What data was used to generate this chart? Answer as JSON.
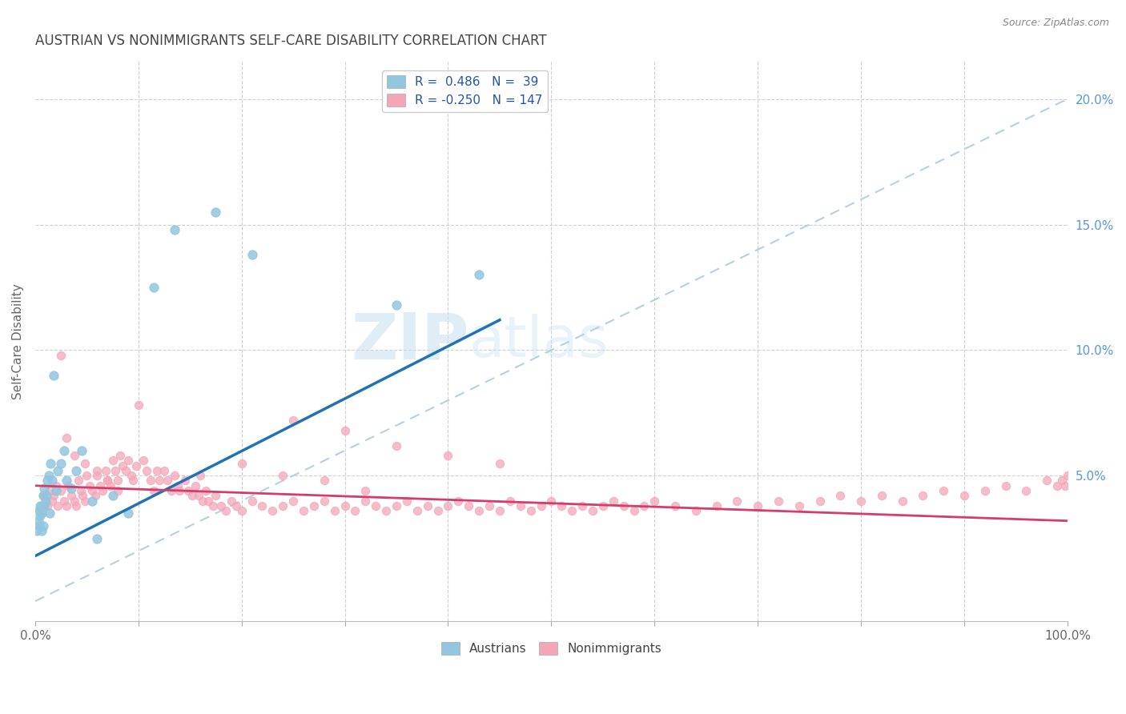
{
  "title": "AUSTRIAN VS NONIMMIGRANTS SELF-CARE DISABILITY CORRELATION CHART",
  "source": "Source: ZipAtlas.com",
  "ylabel": "Self-Care Disability",
  "xlim": [
    0,
    1.0
  ],
  "ylim": [
    -0.008,
    0.215
  ],
  "r_austrians": 0.486,
  "n_austrians": 39,
  "r_nonimmigrants": -0.25,
  "n_nonimmigrants": 147,
  "blue_scatter_color": "#92c5de",
  "pink_scatter_color": "#f4a6b8",
  "blue_line_color": "#2171b5",
  "pink_line_color": "#d63b6e",
  "dashed_line_color": "#a8cee2",
  "blue_line_x": [
    0.0,
    0.45
  ],
  "blue_line_y": [
    0.018,
    0.112
  ],
  "pink_line_x": [
    0.0,
    1.0
  ],
  "pink_line_y": [
    0.046,
    0.032
  ],
  "diag_line_x": [
    0.0,
    1.0
  ],
  "diag_line_y": [
    0.0,
    0.2
  ],
  "austrians_x": [
    0.002,
    0.003,
    0.004,
    0.004,
    0.005,
    0.005,
    0.006,
    0.006,
    0.007,
    0.008,
    0.008,
    0.009,
    0.009,
    0.01,
    0.011,
    0.012,
    0.013,
    0.014,
    0.015,
    0.016,
    0.018,
    0.02,
    0.022,
    0.025,
    0.028,
    0.03,
    0.035,
    0.04,
    0.045,
    0.055,
    0.06,
    0.075,
    0.09,
    0.115,
    0.135,
    0.175,
    0.21,
    0.35,
    0.43
  ],
  "austrians_y": [
    0.028,
    0.032,
    0.03,
    0.036,
    0.034,
    0.038,
    0.028,
    0.035,
    0.038,
    0.03,
    0.042,
    0.038,
    0.045,
    0.04,
    0.042,
    0.048,
    0.05,
    0.035,
    0.055,
    0.048,
    0.09,
    0.044,
    0.052,
    0.055,
    0.06,
    0.048,
    0.045,
    0.052,
    0.06,
    0.04,
    0.025,
    0.042,
    0.035,
    0.125,
    0.148,
    0.155,
    0.138,
    0.118,
    0.13
  ],
  "nonimmigrants_x": [
    0.008,
    0.01,
    0.012,
    0.014,
    0.016,
    0.018,
    0.02,
    0.022,
    0.025,
    0.028,
    0.03,
    0.032,
    0.035,
    0.038,
    0.04,
    0.042,
    0.044,
    0.046,
    0.048,
    0.05,
    0.053,
    0.055,
    0.058,
    0.06,
    0.063,
    0.065,
    0.068,
    0.07,
    0.073,
    0.075,
    0.078,
    0.08,
    0.082,
    0.085,
    0.088,
    0.09,
    0.093,
    0.095,
    0.098,
    0.1,
    0.105,
    0.108,
    0.112,
    0.115,
    0.118,
    0.12,
    0.125,
    0.128,
    0.132,
    0.135,
    0.138,
    0.14,
    0.145,
    0.148,
    0.152,
    0.155,
    0.158,
    0.162,
    0.165,
    0.168,
    0.172,
    0.175,
    0.18,
    0.185,
    0.19,
    0.195,
    0.2,
    0.21,
    0.22,
    0.23,
    0.24,
    0.25,
    0.26,
    0.27,
    0.28,
    0.29,
    0.3,
    0.31,
    0.32,
    0.33,
    0.34,
    0.35,
    0.36,
    0.37,
    0.38,
    0.39,
    0.4,
    0.41,
    0.42,
    0.43,
    0.44,
    0.45,
    0.46,
    0.47,
    0.48,
    0.49,
    0.5,
    0.51,
    0.52,
    0.53,
    0.54,
    0.55,
    0.56,
    0.57,
    0.58,
    0.59,
    0.6,
    0.62,
    0.64,
    0.66,
    0.68,
    0.7,
    0.72,
    0.74,
    0.76,
    0.78,
    0.8,
    0.82,
    0.84,
    0.86,
    0.88,
    0.9,
    0.92,
    0.94,
    0.96,
    0.98,
    0.99,
    0.995,
    0.998,
    1.0,
    0.025,
    0.03,
    0.038,
    0.048,
    0.06,
    0.07,
    0.08,
    0.25,
    0.3,
    0.35,
    0.4,
    0.45,
    0.16,
    0.2,
    0.24,
    0.28,
    0.32
  ],
  "nonimmigrants_y": [
    0.042,
    0.04,
    0.038,
    0.044,
    0.04,
    0.042,
    0.046,
    0.038,
    0.044,
    0.04,
    0.038,
    0.046,
    0.042,
    0.04,
    0.038,
    0.048,
    0.044,
    0.042,
    0.04,
    0.05,
    0.046,
    0.044,
    0.042,
    0.05,
    0.046,
    0.044,
    0.052,
    0.048,
    0.046,
    0.056,
    0.052,
    0.048,
    0.058,
    0.054,
    0.052,
    0.056,
    0.05,
    0.048,
    0.054,
    0.078,
    0.056,
    0.052,
    0.048,
    0.044,
    0.052,
    0.048,
    0.052,
    0.048,
    0.044,
    0.05,
    0.046,
    0.044,
    0.048,
    0.044,
    0.042,
    0.046,
    0.042,
    0.04,
    0.044,
    0.04,
    0.038,
    0.042,
    0.038,
    0.036,
    0.04,
    0.038,
    0.036,
    0.04,
    0.038,
    0.036,
    0.038,
    0.04,
    0.036,
    0.038,
    0.04,
    0.036,
    0.038,
    0.036,
    0.04,
    0.038,
    0.036,
    0.038,
    0.04,
    0.036,
    0.038,
    0.036,
    0.038,
    0.04,
    0.038,
    0.036,
    0.038,
    0.036,
    0.04,
    0.038,
    0.036,
    0.038,
    0.04,
    0.038,
    0.036,
    0.038,
    0.036,
    0.038,
    0.04,
    0.038,
    0.036,
    0.038,
    0.04,
    0.038,
    0.036,
    0.038,
    0.04,
    0.038,
    0.04,
    0.038,
    0.04,
    0.042,
    0.04,
    0.042,
    0.04,
    0.042,
    0.044,
    0.042,
    0.044,
    0.046,
    0.044,
    0.048,
    0.046,
    0.048,
    0.046,
    0.05,
    0.098,
    0.065,
    0.058,
    0.055,
    0.052,
    0.048,
    0.044,
    0.072,
    0.068,
    0.062,
    0.058,
    0.055,
    0.05,
    0.055,
    0.05,
    0.048,
    0.044
  ]
}
